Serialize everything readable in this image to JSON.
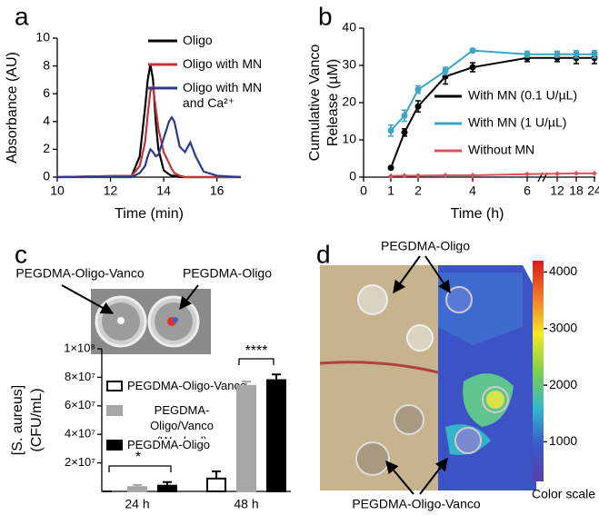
{
  "panel_labels": [
    "a",
    "b",
    "c",
    "d"
  ],
  "chart_data": [
    {
      "type": "line",
      "xlabel": "Time (min)",
      "ylabel": "Absorbance (AU)",
      "x": [
        10,
        12.8,
        13.1,
        13.3,
        13.4,
        13.5,
        13.6,
        13.7,
        13.8,
        14.0,
        14.2,
        14.3,
        14.4,
        14.6,
        14.8,
        15.0,
        15.2,
        15.5,
        16,
        16.9
      ],
      "series": [
        {
          "name": "Oligo",
          "color": "#000000",
          "values": [
            0,
            0.1,
            1.5,
            5,
            7,
            8.1,
            7,
            4,
            2,
            0.5,
            0.2,
            0.1,
            0.1,
            0,
            0,
            0,
            0,
            0,
            0,
            0
          ]
        },
        {
          "name": "Oligo with MN",
          "color": "#c0363c",
          "values": [
            0,
            0.1,
            0.8,
            2.5,
            4.5,
            6.2,
            6.5,
            5,
            3.5,
            1.8,
            1,
            0.6,
            0.3,
            0.1,
            0,
            0,
            0,
            0,
            0,
            0
          ]
        },
        {
          "name": "Oligo with MN and Ca²⁺",
          "color": "#2b3a8f",
          "values": [
            0,
            0,
            0.3,
            0.8,
            1.5,
            2,
            1.8,
            1.5,
            1.6,
            2.8,
            4,
            4.3,
            4,
            2.2,
            1.8,
            2.5,
            1.5,
            0.4,
            0.1,
            0
          ]
        }
      ],
      "xlim": [
        10,
        16.9
      ],
      "xticks": [
        10,
        12,
        14,
        16
      ],
      "ylim": [
        0,
        10
      ],
      "yticks": [
        0,
        2,
        4,
        6,
        8,
        10
      ]
    },
    {
      "type": "errorline",
      "xlabel": "Time (h)",
      "ylabel_lines": [
        "Cumulative Vanco",
        "Release (µM)"
      ],
      "x": [
        1,
        1.5,
        2,
        3,
        4,
        6,
        12,
        18,
        24
      ],
      "series": [
        {
          "name": "With MN (0.1 U/µL)",
          "color": "#000000",
          "values": [
            2.5,
            12,
            19,
            27,
            29.5,
            32,
            32,
            32,
            32
          ],
          "errors": [
            0.3,
            1,
            1.5,
            2,
            1.2,
            1,
            1,
            1.5,
            1.5
          ]
        },
        {
          "name": "With MN (1 U/µL)",
          "color": "#3aa6c4",
          "values": [
            12.5,
            16.5,
            23.5,
            28.5,
            34,
            33,
            33,
            33,
            33
          ],
          "errors": [
            1.5,
            1.5,
            1,
            1,
            0.5,
            0.8,
            0.8,
            1,
            1
          ]
        },
        {
          "name": "Without MN",
          "color": "#e0525a",
          "values": [
            0.3,
            0.4,
            0.4,
            0.5,
            0.5,
            0.8,
            0.9,
            1,
            1
          ]
        }
      ],
      "xlim": [
        0,
        24
      ],
      "xticks": [
        0,
        1,
        2,
        4,
        6,
        12,
        18,
        24
      ],
      "ylim": [
        0,
        40
      ],
      "yticks": [
        0,
        10,
        20,
        30,
        40
      ]
    },
    {
      "type": "groupbar",
      "ylabel_lines": [
        "[S. aureus]",
        "(CFU/mL)"
      ],
      "categories": [
        "24 h",
        "48 h"
      ],
      "series": [
        {
          "name": "PEGDMA-Oligo-Vanco",
          "color": "#ffffff",
          "edge": "#000000",
          "values": [
            0,
            9000000
          ],
          "errors": [
            0,
            5000000
          ]
        },
        {
          "name": "PEGDMA-Oligo/Vanco (Washed)",
          "color": "#a6a6a6",
          "edge": "#a6a6a6",
          "values": [
            3000000,
            74000000
          ],
          "errors": [
            1500000,
            3000000
          ]
        },
        {
          "name": "PEGDMA-Oligo",
          "color": "#000000",
          "edge": "#000000",
          "values": [
            4000000,
            78000000
          ],
          "errors": [
            2500000,
            4000000
          ]
        }
      ],
      "ylim": [
        0,
        100000000
      ],
      "yticks": [
        {
          "value": 20000000,
          "label": "2×10⁷"
        },
        {
          "value": 40000000,
          "label": "4×10⁷"
        },
        {
          "value": 60000000,
          "label": "6×10⁷"
        },
        {
          "value": 80000000,
          "label": "8×10⁷"
        },
        {
          "value": 100000000,
          "label": "1×10⁸"
        }
      ],
      "annotations": [
        "*",
        "****"
      ],
      "photo_labels": [
        "PEGDMA-Oligo-Vanco",
        "PEGDMA-Oligo"
      ]
    },
    {
      "type": "colorbar",
      "title": "Color scale",
      "colors": [
        "#d7191c",
        "#f07c28",
        "#f5e726",
        "#7fd04a",
        "#36b8c9",
        "#3a5ac9",
        "#5b3fa8"
      ],
      "ylim": [
        300,
        4200
      ],
      "yticks": [
        1000,
        2000,
        3000,
        4000
      ],
      "photo_labels": [
        "PEGDMA-Oligo",
        "PEGDMA-Oligo-Vanco"
      ]
    }
  ]
}
